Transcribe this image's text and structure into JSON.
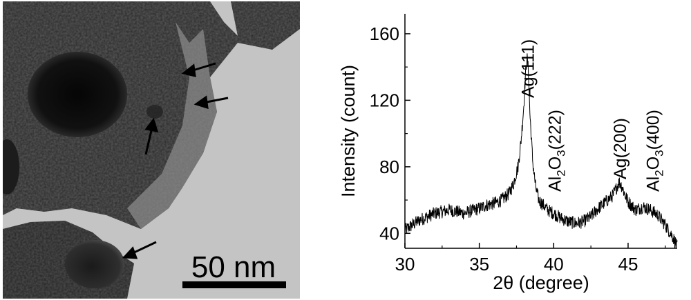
{
  "tem_image": {
    "scale_bar_label": "50 nm",
    "arrow_count": 4,
    "image_description_icon": "tem-micrograph-icon"
  },
  "chart_data": {
    "type": "line",
    "xlabel": "2θ (degree)",
    "ylabel": "Intensity (count)",
    "xlim": [
      30,
      48.3
    ],
    "ylim": [
      31,
      172
    ],
    "xticks": [
      30,
      35,
      40,
      45
    ],
    "yticks": [
      40,
      80,
      120,
      160
    ],
    "grid": false,
    "series": [
      {
        "x": [
          30,
          31,
          32,
          33,
          34,
          35,
          35.5,
          36,
          36.5,
          37,
          37.3,
          37.6,
          37.8,
          38.0,
          38.1,
          38.2,
          38.3,
          38.4,
          38.6,
          38.8,
          39.0,
          39.3,
          39.6,
          40,
          40.5,
          41,
          41.5,
          42,
          42.5,
          43,
          43.5,
          44,
          44.2,
          44.4,
          44.6,
          44.8,
          45,
          45.5,
          46,
          46.5,
          47,
          47.5,
          48,
          48.3
        ],
        "y": [
          42,
          48,
          52,
          54,
          52,
          55,
          57,
          58,
          60,
          64,
          70,
          80,
          95,
          118,
          135,
          146,
          138,
          112,
          82,
          67,
          60,
          57,
          54,
          52,
          49,
          47,
          46,
          47,
          50,
          55,
          59,
          63,
          67,
          71,
          68,
          63,
          59,
          54,
          56,
          54,
          51,
          45,
          38,
          32
        ]
      }
    ],
    "annotations": [
      {
        "text": "Ag(111)",
        "x": 38.2
      },
      {
        "text": "Al2O3(222)",
        "x": 40.0
      },
      {
        "text": "Ag(200)",
        "x": 44.4
      },
      {
        "text": "Al2O3(400)",
        "x": 46.6
      }
    ],
    "xtick_labels": [
      "30",
      "35",
      "40",
      "45"
    ],
    "ytick_labels": [
      "40",
      "80",
      "120",
      "160"
    ]
  }
}
